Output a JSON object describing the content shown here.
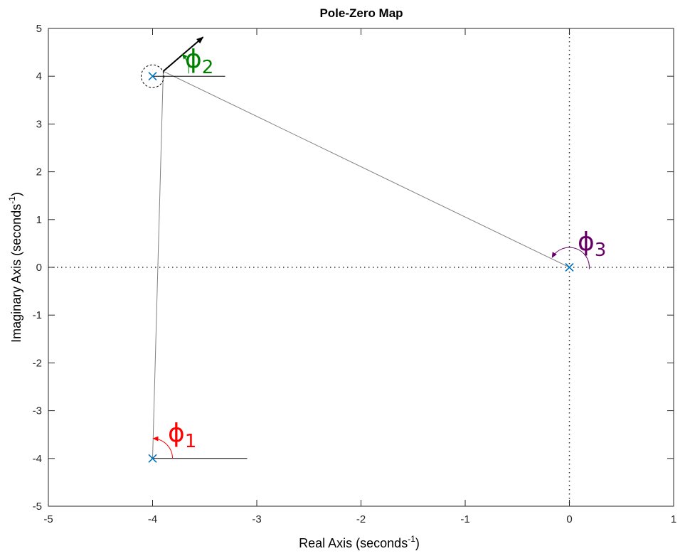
{
  "chart_data": {
    "type": "scatter",
    "title": "Pole-Zero Map",
    "xlabel": "Real Axis (seconds",
    "ylabel": "Imaginary Axis (seconds",
    "label_exponent": "-1",
    "xlim": [
      -5,
      1
    ],
    "ylim": [
      -5,
      5
    ],
    "x_ticks": [
      "-5",
      "-4",
      "-3",
      "-2",
      "-1",
      "0",
      "1"
    ],
    "y_ticks": [
      "5",
      "4",
      "3",
      "2",
      "1",
      "0",
      "-1",
      "-2",
      "-3",
      "-4",
      "-5"
    ],
    "poles": [
      {
        "x": -4,
        "y": 4
      },
      {
        "x": -4,
        "y": -4
      },
      {
        "x": 0,
        "y": 0
      }
    ],
    "angle_annotations": [
      {
        "symbol": "ϕ",
        "subscript": "1",
        "color": "#ff0000"
      },
      {
        "symbol": "ϕ",
        "subscript": "2",
        "color": "#008000"
      },
      {
        "symbol": "ϕ",
        "subscript": "3",
        "color": "#660066"
      }
    ],
    "colors": {
      "pole_marker": "#0072bd",
      "connector": "#808080",
      "departure_arrow": "#000000"
    },
    "grid": false
  }
}
